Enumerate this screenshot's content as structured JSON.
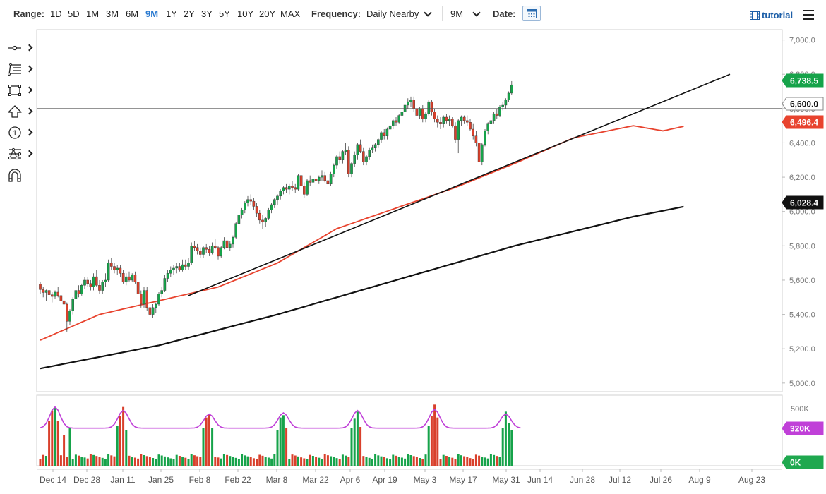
{
  "toolbar": {
    "range_label": "Range:",
    "ranges": [
      "1D",
      "5D",
      "1M",
      "3M",
      "6M",
      "9M",
      "1Y",
      "2Y",
      "3Y",
      "5Y",
      "10Y",
      "20Y",
      "MAX"
    ],
    "active_range": "9M",
    "frequency_label": "Frequency:",
    "frequency_value": "Daily Nearby",
    "period_value": "9M",
    "date_label": "Date:",
    "tutorial_label": "tutorial"
  },
  "sidebar": {
    "tools": [
      "crosshair-icon",
      "fibonacci-icon",
      "rectangle-icon",
      "arrow-up-icon",
      "numbered-marker-icon",
      "pattern-icon",
      "magnet-icon"
    ]
  },
  "colors": {
    "up_candle": "#16a34a",
    "down_candle": "#d9402b",
    "ma50": "#e8432e",
    "ma200": "#111111",
    "volume_avg": "#c040d8",
    "volume_zero_badge": "#1fa84f",
    "volume_avg_badge": "#c040d8"
  },
  "chart_data": {
    "type": "candlestick",
    "price_axis": {
      "ylim": [
        4950,
        7060
      ],
      "ticks": [
        "7,000.0",
        "6,800.0",
        "6,600.0",
        "6,400.0",
        "6,200.0",
        "6,000.0",
        "5,800.0",
        "5,600.0",
        "5,400.0",
        "5,200.0",
        "5,000.0"
      ]
    },
    "x_axis": {
      "labels": [
        "Dec 14",
        "Dec 28",
        "Jan 11",
        "Jan 25",
        "Feb 8",
        "Feb 22",
        "Mar 8",
        "Mar 22",
        "Apr 6",
        "Apr 19",
        "May 3",
        "May 17",
        "May 31",
        "Jun 14",
        "Jun 28",
        "Jul 12",
        "Jul 26",
        "Aug 9",
        "Aug 23"
      ]
    },
    "badges": {
      "last_price": "6,738.5",
      "horizontal_line": "6,600.0",
      "ma50": "6,496.4",
      "ma200": "6,028.4"
    },
    "horizontal_line_value": 6600,
    "trendline": [
      [
        0,
        5510
      ],
      [
        81,
        6800
      ]
    ],
    "ma50": [
      [
        0,
        5250
      ],
      [
        20,
        5400
      ],
      [
        40,
        5480
      ],
      [
        60,
        5560
      ],
      [
        80,
        5700
      ],
      [
        100,
        5900
      ],
      [
        120,
        6020
      ],
      [
        140,
        6140
      ],
      [
        160,
        6280
      ],
      [
        180,
        6430
      ],
      [
        200,
        6500
      ],
      [
        210,
        6470
      ],
      [
        217,
        6496.4
      ]
    ],
    "ma200": [
      [
        0,
        5085
      ],
      [
        40,
        5220
      ],
      [
        80,
        5400
      ],
      [
        120,
        5600
      ],
      [
        160,
        5800
      ],
      [
        200,
        5970
      ],
      [
        217,
        6028.4
      ]
    ],
    "candles_ohlc": [
      [
        5577,
        5590,
        5520,
        5545
      ],
      [
        5545,
        5560,
        5500,
        5528
      ],
      [
        5528,
        5545,
        5480,
        5540
      ],
      [
        5540,
        5555,
        5500,
        5515
      ],
      [
        5515,
        5530,
        5470,
        5505
      ],
      [
        5505,
        5540,
        5490,
        5530
      ],
      [
        5530,
        5560,
        5500,
        5510
      ],
      [
        5510,
        5525,
        5470,
        5480
      ],
      [
        5480,
        5500,
        5440,
        5460
      ],
      [
        5460,
        5470,
        5300,
        5360
      ],
      [
        5360,
        5430,
        5340,
        5420
      ],
      [
        5420,
        5500,
        5400,
        5490
      ],
      [
        5490,
        5560,
        5480,
        5540
      ],
      [
        5540,
        5570,
        5500,
        5520
      ],
      [
        5520,
        5580,
        5510,
        5570
      ],
      [
        5570,
        5620,
        5550,
        5600
      ],
      [
        5600,
        5620,
        5560,
        5580
      ],
      [
        5580,
        5600,
        5540,
        5560
      ],
      [
        5560,
        5640,
        5540,
        5620
      ],
      [
        5620,
        5660,
        5560,
        5570
      ],
      [
        5570,
        5600,
        5520,
        5540
      ],
      [
        5540,
        5600,
        5520,
        5590
      ],
      [
        5590,
        5640,
        5560,
        5600
      ],
      [
        5600,
        5720,
        5590,
        5700
      ],
      [
        5700,
        5730,
        5660,
        5680
      ],
      [
        5680,
        5700,
        5640,
        5660
      ],
      [
        5660,
        5690,
        5630,
        5670
      ],
      [
        5670,
        5690,
        5620,
        5640
      ],
      [
        5640,
        5660,
        5580,
        5590
      ],
      [
        5590,
        5640,
        5570,
        5620
      ],
      [
        5620,
        5650,
        5590,
        5600
      ],
      [
        5600,
        5640,
        5590,
        5630
      ],
      [
        5630,
        5650,
        5580,
        5590
      ],
      [
        5590,
        5610,
        5500,
        5520
      ],
      [
        5520,
        5540,
        5440,
        5460
      ],
      [
        5460,
        5560,
        5440,
        5540
      ],
      [
        5540,
        5560,
        5420,
        5440
      ],
      [
        5440,
        5470,
        5380,
        5400
      ],
      [
        5400,
        5460,
        5380,
        5440
      ],
      [
        5440,
        5470,
        5410,
        5460
      ],
      [
        5460,
        5530,
        5450,
        5520
      ],
      [
        5520,
        5560,
        5500,
        5540
      ],
      [
        5540,
        5630,
        5530,
        5610
      ],
      [
        5610,
        5660,
        5590,
        5640
      ],
      [
        5640,
        5680,
        5620,
        5660
      ],
      [
        5660,
        5690,
        5630,
        5670
      ],
      [
        5670,
        5700,
        5640,
        5680
      ],
      [
        5680,
        5700,
        5650,
        5660
      ],
      [
        5660,
        5720,
        5650,
        5690
      ],
      [
        5690,
        5720,
        5660,
        5680
      ],
      [
        5680,
        5730,
        5660,
        5700
      ],
      [
        5700,
        5820,
        5690,
        5800
      ],
      [
        5800,
        5830,
        5770,
        5790
      ],
      [
        5790,
        5810,
        5750,
        5770
      ],
      [
        5770,
        5790,
        5730,
        5750
      ],
      [
        5750,
        5800,
        5730,
        5790
      ],
      [
        5790,
        5810,
        5760,
        5780
      ],
      [
        5780,
        5800,
        5740,
        5760
      ],
      [
        5760,
        5820,
        5750,
        5800
      ],
      [
        5800,
        5840,
        5780,
        5790
      ],
      [
        5790,
        5800,
        5720,
        5740
      ],
      [
        5740,
        5800,
        5730,
        5790
      ],
      [
        5790,
        5850,
        5780,
        5830
      ],
      [
        5830,
        5850,
        5780,
        5790
      ],
      [
        5790,
        5830,
        5770,
        5810
      ],
      [
        5810,
        5860,
        5790,
        5850
      ],
      [
        5850,
        5940,
        5840,
        5930
      ],
      [
        5930,
        5990,
        5910,
        5980
      ],
      [
        5980,
        6020,
        5960,
        6010
      ],
      [
        6010,
        6060,
        5990,
        6050
      ],
      [
        6050,
        6090,
        6030,
        6070
      ],
      [
        6070,
        6100,
        6040,
        6060
      ],
      [
        6060,
        6080,
        6010,
        6030
      ],
      [
        6030,
        6050,
        5970,
        5990
      ],
      [
        5990,
        6010,
        5930,
        5950
      ],
      [
        5950,
        5980,
        5900,
        5940
      ],
      [
        5940,
        5970,
        5910,
        5960
      ],
      [
        5960,
        6020,
        5950,
        6010
      ],
      [
        6010,
        6050,
        5990,
        6040
      ],
      [
        6040,
        6080,
        6020,
        6070
      ],
      [
        6070,
        6100,
        6040,
        6090
      ],
      [
        6090,
        6130,
        6070,
        6120
      ],
      [
        6120,
        6150,
        6100,
        6140
      ],
      [
        6140,
        6160,
        6110,
        6130
      ],
      [
        6130,
        6160,
        6100,
        6150
      ],
      [
        6150,
        6180,
        6120,
        6140
      ],
      [
        6140,
        6160,
        6110,
        6130
      ],
      [
        6130,
        6220,
        6120,
        6210
      ],
      [
        6210,
        6220,
        6140,
        6150
      ],
      [
        6150,
        6170,
        6080,
        6100
      ],
      [
        6100,
        6190,
        6090,
        6180
      ],
      [
        6180,
        6210,
        6150,
        6170
      ],
      [
        6170,
        6200,
        6150,
        6190
      ],
      [
        6190,
        6220,
        6160,
        6180
      ],
      [
        6180,
        6210,
        6160,
        6200
      ],
      [
        6200,
        6240,
        6180,
        6210
      ],
      [
        6210,
        6230,
        6170,
        6180
      ],
      [
        6180,
        6200,
        6140,
        6160
      ],
      [
        6160,
        6230,
        6150,
        6220
      ],
      [
        6220,
        6280,
        6200,
        6270
      ],
      [
        6270,
        6330,
        6250,
        6320
      ],
      [
        6320,
        6350,
        6280,
        6300
      ],
      [
        6300,
        6360,
        6280,
        6350
      ],
      [
        6350,
        6400,
        6330,
        6360
      ],
      [
        6360,
        6380,
        6200,
        6220
      ],
      [
        6220,
        6290,
        6200,
        6280
      ],
      [
        6280,
        6350,
        6260,
        6330
      ],
      [
        6330,
        6400,
        6300,
        6390
      ],
      [
        6390,
        6420,
        6340,
        6350
      ],
      [
        6350,
        6370,
        6270,
        6290
      ],
      [
        6290,
        6330,
        6270,
        6320
      ],
      [
        6320,
        6370,
        6300,
        6360
      ],
      [
        6360,
        6390,
        6340,
        6370
      ],
      [
        6370,
        6400,
        6350,
        6390
      ],
      [
        6390,
        6430,
        6370,
        6420
      ],
      [
        6420,
        6470,
        6400,
        6460
      ],
      [
        6460,
        6480,
        6420,
        6440
      ],
      [
        6440,
        6490,
        6420,
        6480
      ],
      [
        6480,
        6510,
        6460,
        6500
      ],
      [
        6500,
        6540,
        6480,
        6530
      ],
      [
        6530,
        6550,
        6500,
        6520
      ],
      [
        6520,
        6570,
        6510,
        6560
      ],
      [
        6560,
        6600,
        6540,
        6580
      ],
      [
        6580,
        6630,
        6560,
        6620
      ],
      [
        6620,
        6660,
        6600,
        6640
      ],
      [
        6640,
        6670,
        6610,
        6650
      ],
      [
        6650,
        6670,
        6580,
        6600
      ],
      [
        6600,
        6620,
        6540,
        6560
      ],
      [
        6560,
        6610,
        6540,
        6600
      ],
      [
        6600,
        6620,
        6520,
        6540
      ],
      [
        6540,
        6580,
        6520,
        6570
      ],
      [
        6570,
        6650,
        6560,
        6640
      ],
      [
        6640,
        6650,
        6560,
        6580
      ],
      [
        6580,
        6600,
        6520,
        6540
      ],
      [
        6540,
        6560,
        6490,
        6520
      ],
      [
        6520,
        6550,
        6480,
        6510
      ],
      [
        6510,
        6560,
        6490,
        6550
      ],
      [
        6550,
        6570,
        6510,
        6530
      ],
      [
        6530,
        6560,
        6500,
        6540
      ],
      [
        6540,
        6550,
        6490,
        6500
      ],
      [
        6500,
        6520,
        6400,
        6420
      ],
      [
        6420,
        6540,
        6340,
        6530
      ],
      [
        6530,
        6560,
        6500,
        6550
      ],
      [
        6550,
        6560,
        6510,
        6530
      ],
      [
        6530,
        6560,
        6500,
        6520
      ],
      [
        6520,
        6540,
        6470,
        6480
      ],
      [
        6480,
        6510,
        6420,
        6440
      ],
      [
        6440,
        6470,
        6380,
        6400
      ],
      [
        6400,
        6420,
        6250,
        6290
      ],
      [
        6290,
        6400,
        6270,
        6390
      ],
      [
        6390,
        6480,
        6380,
        6470
      ],
      [
        6470,
        6520,
        6450,
        6510
      ],
      [
        6510,
        6540,
        6480,
        6530
      ],
      [
        6530,
        6580,
        6510,
        6570
      ],
      [
        6570,
        6600,
        6540,
        6560
      ],
      [
        6560,
        6620,
        6550,
        6610
      ],
      [
        6610,
        6640,
        6590,
        6620
      ],
      [
        6620,
        6660,
        6600,
        6650
      ],
      [
        6650,
        6700,
        6640,
        6690
      ],
      [
        6690,
        6760,
        6680,
        6738.5
      ]
    ],
    "volume_axis": {
      "labels": [
        "500K",
        "320K",
        "0K"
      ],
      "badges": [
        "320K",
        "0K"
      ]
    }
  }
}
